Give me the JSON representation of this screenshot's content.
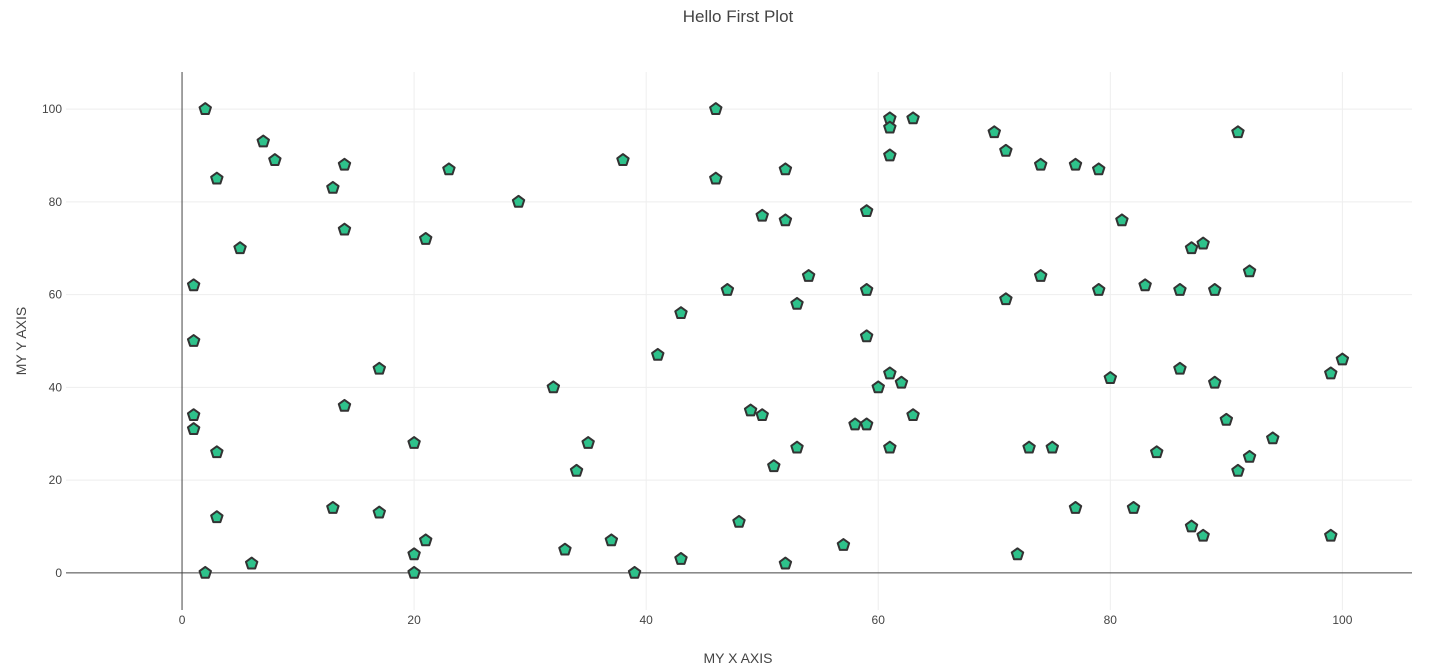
{
  "chart_data": {
    "type": "scatter",
    "title": "Hello First Plot",
    "xlabel": "MY X AXIS",
    "ylabel": "MY Y AXIS",
    "xlim": [
      -10,
      106
    ],
    "ylim": [
      -8,
      108
    ],
    "x_ticks": [
      0,
      20,
      40,
      60,
      80,
      100
    ],
    "y_ticks": [
      0,
      20,
      40,
      60,
      80,
      100
    ],
    "grid": true,
    "marker": "pentagon",
    "marker_fill": "#2ec28b",
    "marker_edge": "#333333",
    "x": [
      2,
      7,
      8,
      3,
      5,
      1,
      1,
      1,
      1,
      3,
      3,
      2,
      6,
      13,
      14,
      14,
      13,
      14,
      17,
      17,
      20,
      20,
      20,
      21,
      21,
      23,
      29,
      32,
      33,
      34,
      35,
      37,
      38,
      39,
      41,
      43,
      43,
      46,
      46,
      47,
      48,
      49,
      50,
      50,
      51,
      52,
      52,
      52,
      53,
      53,
      54,
      57,
      58,
      59,
      59,
      59,
      59,
      60,
      61,
      61,
      61,
      61,
      61,
      62,
      63,
      63,
      70,
      71,
      71,
      72,
      73,
      74,
      74,
      75,
      77,
      77,
      79,
      79,
      80,
      81,
      82,
      83,
      84,
      86,
      86,
      87,
      87,
      88,
      88,
      89,
      89,
      90,
      91,
      91,
      92,
      92,
      94,
      99,
      99,
      100
    ],
    "y": [
      100,
      93,
      89,
      85,
      70,
      62,
      50,
      34,
      31,
      26,
      12,
      0,
      2,
      83,
      88,
      74,
      14,
      36,
      44,
      13,
      28,
      4,
      0,
      72,
      7,
      87,
      80,
      40,
      5,
      22,
      28,
      7,
      89,
      0,
      47,
      56,
      3,
      100,
      85,
      61,
      11,
      35,
      77,
      34,
      23,
      87,
      76,
      2,
      58,
      27,
      64,
      6,
      32,
      78,
      61,
      51,
      32,
      40,
      98,
      96,
      90,
      43,
      27,
      41,
      98,
      34,
      95,
      91,
      59,
      4,
      27,
      88,
      64,
      27,
      88,
      14,
      87,
      61,
      42,
      76,
      14,
      62,
      26,
      61,
      44,
      70,
      10,
      71,
      8,
      61,
      41,
      33,
      95,
      22,
      65,
      25,
      29,
      43,
      8,
      46
    ]
  }
}
